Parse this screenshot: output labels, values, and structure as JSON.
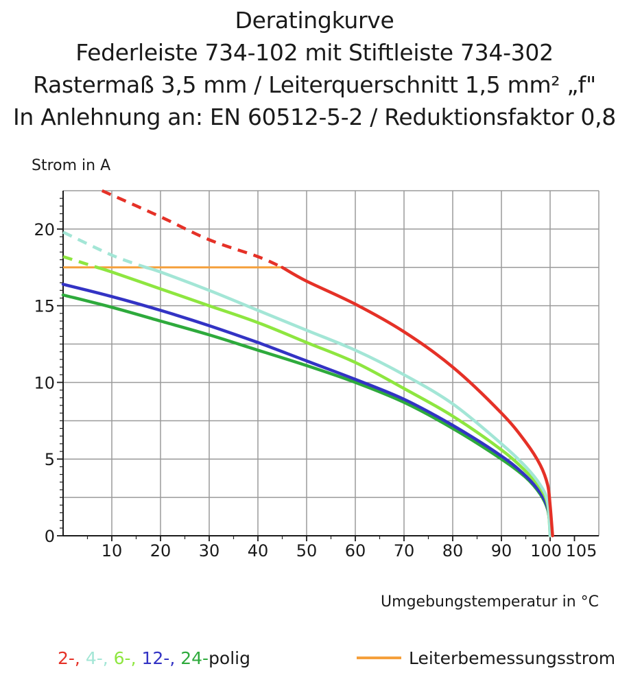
{
  "title_lines": [
    "Deratingkurve",
    "Federleiste 734-102 mit Stiftleiste 734-302",
    "Rastermaß 3,5 mm / Leiterquerschnitt 1,5 mm² „f\"",
    "In Anlehnung an: EN 60512-5-2 / Reduktionsfaktor 0,8"
  ],
  "colors": {
    "grid": "#9a9a9a",
    "axis": "#1a1a1a",
    "pol2": "#e53127",
    "pol4": "#a3e6d6",
    "pol6": "#8ee640",
    "pol12": "#3333c4",
    "pol24": "#2eaa3c",
    "rated": "#f5a03c"
  },
  "chart_data": {
    "type": "line",
    "ylabel": "Strom in A",
    "xlabel": "Umgebungstemperatur in °C",
    "xlim": [
      0,
      110
    ],
    "ylim": [
      0,
      22.5
    ],
    "x_ticks": [
      10,
      20,
      30,
      40,
      50,
      60,
      70,
      80,
      90,
      100,
      105
    ],
    "y_ticks": [
      0,
      5,
      10,
      15,
      20
    ],
    "x_gridlines": [
      10,
      20,
      30,
      40,
      50,
      60,
      70,
      80,
      90,
      100
    ],
    "y_gridlines": [
      2.5,
      5,
      7.5,
      10,
      12.5,
      15,
      17.5,
      20
    ],
    "y_minor_ticks": [
      0.5,
      1,
      1.5,
      2,
      2.5,
      3,
      3.5,
      4,
      4.5,
      5.5,
      6,
      6.5,
      7,
      7.5,
      8,
      8.5,
      9,
      9.5,
      10.5,
      11,
      11.5,
      12,
      12.5,
      13,
      13.5,
      14,
      14.5,
      15.5,
      16,
      16.5,
      17,
      17.5,
      18,
      18.5,
      19,
      19.5,
      20.5,
      21,
      21.5,
      22
    ],
    "rated_current": {
      "name": "Leiterbemessungsstrom",
      "value": 17.5,
      "x_range": [
        0,
        45
      ]
    },
    "series": [
      {
        "name": "2-polig",
        "label": "2-,",
        "color_key": "pol2",
        "dashed_until": 45,
        "x": [
          8,
          20,
          30,
          40,
          45,
          50,
          60,
          70,
          80,
          90,
          95,
          98,
          99.5,
          100,
          100.5
        ],
        "y": [
          22.5,
          20.8,
          19.3,
          18.2,
          17.5,
          16.6,
          15.1,
          13.3,
          11.0,
          8.0,
          6.1,
          4.6,
          3.3,
          2.0,
          0.0
        ]
      },
      {
        "name": "4-polig",
        "label": "4-,",
        "color_key": "pol4",
        "dashed_until": 17,
        "x": [
          0,
          10,
          17,
          20,
          30,
          40,
          50,
          60,
          70,
          80,
          90,
          95,
          98,
          99.5,
          100
        ],
        "y": [
          19.8,
          18.3,
          17.5,
          17.2,
          16.0,
          14.7,
          13.4,
          12.1,
          10.5,
          8.6,
          6.0,
          4.5,
          3.3,
          2.2,
          0.0
        ]
      },
      {
        "name": "6-polig",
        "label": "6-,",
        "color_key": "pol6",
        "dashed_until": 7,
        "x": [
          0,
          7,
          10,
          20,
          30,
          40,
          50,
          60,
          70,
          80,
          90,
          95,
          98,
          99.5,
          100
        ],
        "y": [
          18.2,
          17.5,
          17.2,
          16.1,
          15.0,
          13.9,
          12.6,
          11.3,
          9.6,
          7.8,
          5.6,
          4.2,
          3.1,
          2.0,
          0.0
        ]
      },
      {
        "name": "12-polig",
        "label": "12-,",
        "color_key": "pol12",
        "dashed_until": 0,
        "x": [
          0,
          10,
          20,
          30,
          40,
          50,
          60,
          70,
          80,
          90,
          95,
          98,
          99.5,
          100
        ],
        "y": [
          16.4,
          15.6,
          14.7,
          13.7,
          12.6,
          11.4,
          10.2,
          8.9,
          7.2,
          5.2,
          3.9,
          2.8,
          1.8,
          0.5
        ]
      },
      {
        "name": "24-polig",
        "label": "24-",
        "color_key": "pol24",
        "dashed_until": 0,
        "x": [
          0,
          10,
          20,
          30,
          40,
          50,
          60,
          70,
          80,
          90,
          95,
          98,
          99.5,
          100
        ],
        "y": [
          15.7,
          14.9,
          14.0,
          13.1,
          12.1,
          11.1,
          10.0,
          8.7,
          7.0,
          5.0,
          3.8,
          2.7,
          1.7,
          0.5
        ]
      }
    ],
    "legend": {
      "suffix": "polig",
      "rated_label": "Leiterbemessungsstrom"
    }
  }
}
